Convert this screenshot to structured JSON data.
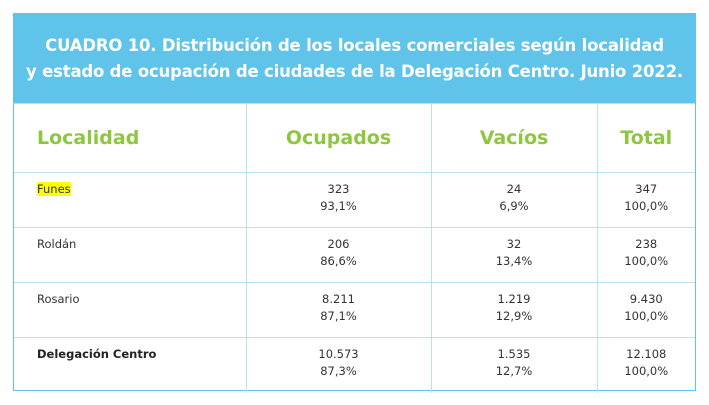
{
  "title": {
    "line1": "CUADRO 10. Distribución de los locales comerciales según localidad",
    "line2": "y estado de ocupación de ciudades de la Delegación Centro. Junio 2022."
  },
  "table": {
    "headers": [
      "Localidad",
      "Ocupados",
      "Vacíos",
      "Total"
    ],
    "rows": [
      {
        "localidad": "Funes",
        "ocupados": {
          "value": "323",
          "pct": "93,1%"
        },
        "vacios": {
          "value": "24",
          "pct": "6,9%"
        },
        "total": {
          "value": "347",
          "pct": "100,0%"
        }
      },
      {
        "localidad": "Roldán",
        "ocupados": {
          "value": "206",
          "pct": "86,6%"
        },
        "vacios": {
          "value": "32",
          "pct": "13,4%"
        },
        "total": {
          "value": "238",
          "pct": "100,0%"
        }
      },
      {
        "localidad": "Rosario",
        "ocupados": {
          "value": "8.211",
          "pct": "87,1%"
        },
        "vacios": {
          "value": "1.219",
          "pct": "12,9%"
        },
        "total": {
          "value": "9.430",
          "pct": "100,0%"
        }
      },
      {
        "localidad": "Delegación Centro",
        "ocupados": {
          "value": "10.573",
          "pct": "87,3%"
        },
        "vacios": {
          "value": "1.535",
          "pct": "12,7%"
        },
        "total": {
          "value": "12.108",
          "pct": "100,0%"
        }
      }
    ]
  },
  "colors": {
    "title_background": "#5fc3ea",
    "header_text": "#8dc63f",
    "highlight": "#ffff00",
    "grid_lines": "#b9dff0"
  }
}
